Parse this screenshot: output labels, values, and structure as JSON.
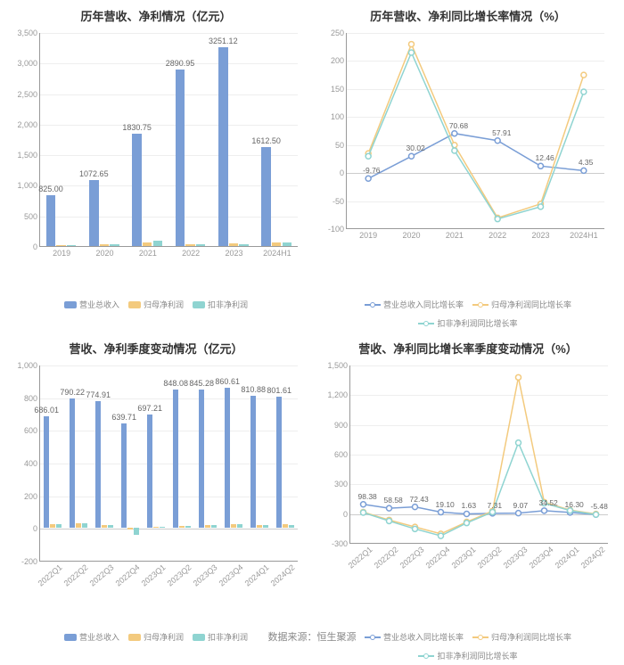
{
  "footer": "数据来源：恒生聚源",
  "colors": {
    "bar_main": "#7a9ed6",
    "bar_sec": "#f3ca7e",
    "bar_ter": "#8fd4d1",
    "line1": "#7a9ed6",
    "line2": "#f3ca7e",
    "line3": "#8fd4d1",
    "grid": "#eeeeee",
    "axis": "#999999",
    "text": "#666666"
  },
  "chart1": {
    "title": "历年营收、净利情况（亿元）",
    "type": "bar",
    "categories": [
      "2019",
      "2020",
      "2021",
      "2022",
      "2023",
      "2024H1"
    ],
    "ylim": [
      0,
      3500
    ],
    "ystep": 500,
    "series": [
      {
        "name": "营业总收入",
        "color": "#7a9ed6",
        "values": [
          825.0,
          1072.65,
          1830.75,
          2890.95,
          3251.12,
          1612.5
        ]
      },
      {
        "name": "归母净利润",
        "color": "#f3ca7e",
        "values": [
          20,
          35,
          55,
          30,
          40,
          65
        ]
      },
      {
        "name": "扣非净利润",
        "color": "#8fd4d1",
        "values": [
          18,
          30,
          95,
          25,
          35,
          60
        ]
      }
    ],
    "value_labels": [
      "825.00",
      "1072.65",
      "1830.75",
      "2890.95",
      "3251.12",
      "1612.50"
    ]
  },
  "chart2": {
    "title": "历年营收、净利同比增长率情况（%）",
    "type": "line",
    "categories": [
      "2019",
      "2020",
      "2021",
      "2022",
      "2023",
      "2024H1"
    ],
    "ylim": [
      -100,
      250
    ],
    "ystep": 50,
    "series": [
      {
        "name": "营业总收入同比增长率",
        "color": "#7a9ed6",
        "values": [
          -9.76,
          30.02,
          70.68,
          57.91,
          12.46,
          4.35
        ]
      },
      {
        "name": "归母净利润同比增长率",
        "color": "#f3ca7e",
        "values": [
          35,
          230,
          50,
          -80,
          -55,
          175
        ]
      },
      {
        "name": "扣非净利润同比增长率",
        "color": "#8fd4d1",
        "values": [
          30,
          215,
          40,
          -82,
          -60,
          145
        ]
      }
    ],
    "point_labels": [
      {
        "text": "-9.76",
        "i": 0,
        "v": -9.76
      },
      {
        "text": "30.02",
        "i": 1,
        "v": 30.02
      },
      {
        "text": "70.68",
        "i": 2,
        "v": 70.68
      },
      {
        "text": "57.91",
        "i": 3,
        "v": 57.91
      },
      {
        "text": "12.46",
        "i": 4,
        "v": 12.46
      },
      {
        "text": "4.35",
        "i": 5,
        "v": 4.35
      }
    ]
  },
  "chart3": {
    "title": "营收、净利季度变动情况（亿元）",
    "type": "bar",
    "categories": [
      "2022Q1",
      "2022Q2",
      "2022Q3",
      "2022Q4",
      "2023Q1",
      "2023Q2",
      "2023Q3",
      "2023Q4",
      "2024Q1",
      "2024Q2"
    ],
    "rotate_x": true,
    "ylim": [
      -200,
      1000
    ],
    "ystep": 200,
    "series": [
      {
        "name": "营业总收入",
        "color": "#7a9ed6",
        "values": [
          686.01,
          790.22,
          774.91,
          639.71,
          697.21,
          848.08,
          845.28,
          860.61,
          810.88,
          801.61
        ]
      },
      {
        "name": "归母净利润",
        "color": "#f3ca7e",
        "values": [
          25,
          30,
          20,
          -10,
          10,
          15,
          20,
          25,
          20,
          22
        ]
      },
      {
        "name": "扣非净利润",
        "color": "#8fd4d1",
        "values": [
          22,
          28,
          18,
          -40,
          8,
          12,
          18,
          22,
          18,
          20
        ]
      }
    ],
    "value_labels": [
      "686.01",
      "790.22",
      "774.91",
      "639.71",
      "697.21",
      "848.08",
      "845.28",
      "860.61",
      "810.88",
      "801.61"
    ]
  },
  "chart4": {
    "title": "营收、净利同比增长率季度变动情况（%）",
    "type": "line",
    "categories": [
      "2022Q1",
      "2022Q2",
      "2022Q3",
      "2022Q4",
      "2023Q1",
      "2023Q2",
      "2023Q3",
      "2023Q4",
      "2024Q1",
      "2024Q2"
    ],
    "rotate_x": true,
    "ylim": [
      -300,
      1500
    ],
    "ystep": 300,
    "series": [
      {
        "name": "营业总收入同比增长率",
        "color": "#7a9ed6",
        "values": [
          98.38,
          58.58,
          72.43,
          19.1,
          1.63,
          7.31,
          9.07,
          34.52,
          16.3,
          -5.48
        ]
      },
      {
        "name": "归母净利润同比增长率",
        "color": "#f3ca7e",
        "values": [
          20,
          -60,
          -130,
          -200,
          -80,
          30,
          1380,
          120,
          40,
          0
        ]
      },
      {
        "name": "扣非净利润同比增长率",
        "color": "#8fd4d1",
        "values": [
          15,
          -70,
          -150,
          -220,
          -90,
          20,
          720,
          110,
          35,
          -5
        ]
      }
    ],
    "point_labels": [
      {
        "text": "98.38",
        "i": 0,
        "v": 98.38
      },
      {
        "text": "58.58",
        "i": 1,
        "v": 58.58
      },
      {
        "text": "72.43",
        "i": 2,
        "v": 72.43
      },
      {
        "text": "19.10",
        "i": 3,
        "v": 19.1
      },
      {
        "text": "1.63",
        "i": 4,
        "v": 1.63
      },
      {
        "text": "7.31",
        "i": 5,
        "v": 7.31
      },
      {
        "text": "9.07",
        "i": 6,
        "v": 9.07
      },
      {
        "text": "34.52",
        "i": 7,
        "v": 34.52
      },
      {
        "text": "16.30",
        "i": 8,
        "v": 16.3
      },
      {
        "text": "-5.48",
        "i": 9,
        "v": -5.48
      }
    ]
  }
}
